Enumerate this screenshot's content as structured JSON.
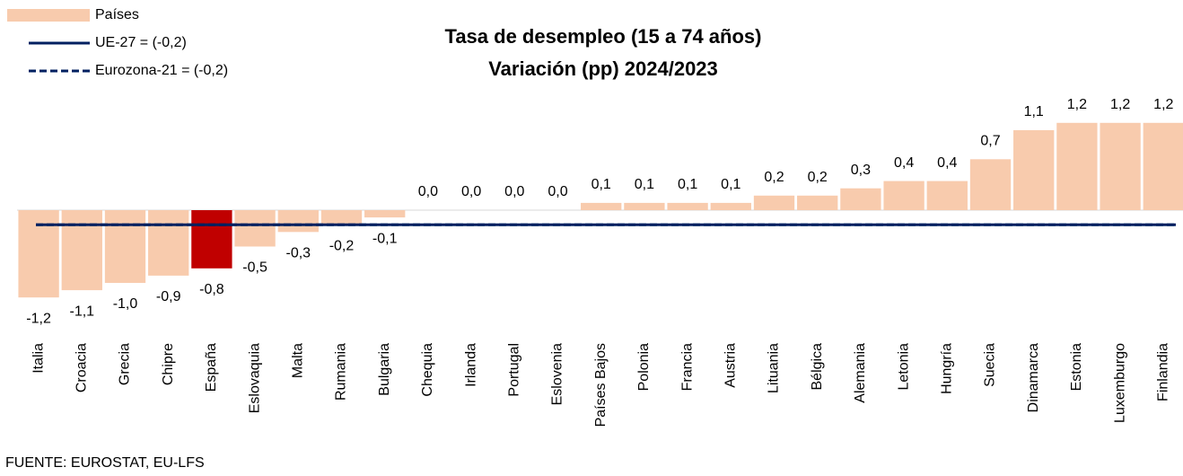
{
  "chart_data": {
    "type": "bar",
    "title": "Tasa de desempleo (15 a 74 años)",
    "subtitle": "Variación (pp) 2024/2023",
    "source": "FUENTE: EUROSTAT, EU-LFS",
    "categories": [
      "Italia",
      "Croacia",
      "Grecia",
      "Chipre",
      "España",
      "Eslovaquia",
      "Malta",
      "Rumania",
      "Bulgaria",
      "Chequia",
      "Irlanda",
      "Portugal",
      "Eslovenia",
      "Países Bajos",
      "Polonia",
      "Francia",
      "Austria",
      "Lituania",
      "Bélgica",
      "Alemania",
      "Letonia",
      "Hungría",
      "Suecia",
      "Dinamarca",
      "Estonia",
      "Luxemburgo",
      "Finlandia"
    ],
    "ylim": [
      -1.5,
      1.5
    ],
    "series": [
      {
        "name": "Países",
        "color": "#f8cbad",
        "values": [
          -1.2,
          -1.1,
          -1.0,
          -0.9,
          -0.8,
          -0.5,
          -0.3,
          -0.2,
          -0.1,
          0.0,
          0.0,
          0.0,
          0.0,
          0.1,
          0.1,
          0.1,
          0.1,
          0.2,
          0.2,
          0.3,
          0.4,
          0.4,
          0.7,
          1.1,
          1.2,
          1.2,
          1.2
        ],
        "value_labels": [
          "-1,2",
          "-1,1",
          "-1,0",
          "-0,9",
          "-0,8",
          "-0,5",
          "-0,3",
          "-0,2",
          "-0,1",
          "0,0",
          "0,0",
          "0,0",
          "0,0",
          "0,1",
          "0,1",
          "0,1",
          "0,1",
          "0,2",
          "0,2",
          "0,3",
          "0,4",
          "0,4",
          "0,7",
          "1,1",
          "1,2",
          "1,2",
          "1,2"
        ],
        "bar_colors": [
          "#f8cbad",
          "#f8cbad",
          "#f8cbad",
          "#f8cbad",
          "#c00000",
          "#f8cbad",
          "#f8cbad",
          "#f8cbad",
          "#f8cbad",
          "#f8cbad",
          "#f8cbad",
          "#f8cbad",
          "#f8cbad",
          "#f8cbad",
          "#f8cbad",
          "#f8cbad",
          "#f8cbad",
          "#f8cbad",
          "#f8cbad",
          "#f8cbad",
          "#f8cbad",
          "#f8cbad",
          "#f8cbad",
          "#f8cbad",
          "#f8cbad",
          "#f8cbad",
          "#f8cbad"
        ]
      },
      {
        "name": "UE-27 = (-0,2)",
        "type": "line",
        "color": "#002060",
        "dashed": false,
        "value": -0.2
      },
      {
        "name": "Eurozona-21 = (-0,2)",
        "type": "line",
        "color": "#002060",
        "dashed": true,
        "value": -0.2
      }
    ]
  }
}
